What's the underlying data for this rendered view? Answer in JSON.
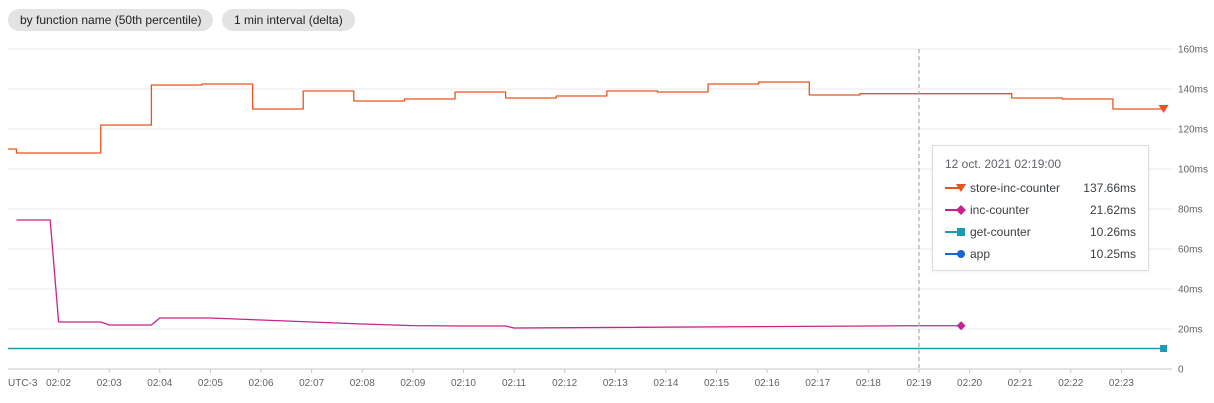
{
  "chips": {
    "aggregation": "by function name (50th percentile)",
    "interval": "1 min interval (delta)"
  },
  "colors": {
    "store-inc-counter": "#e8541e",
    "inc-counter": "#c9218e",
    "get-counter": "#1a9bb0",
    "app": "#1967d2",
    "grid": "#e8eaed",
    "crosshair": "#b0b0b0"
  },
  "tooltip": {
    "time": "12 oct. 2021 02:19:00",
    "rows": [
      {
        "name": "store-inc-counter",
        "value": "137.66ms",
        "marker": "triangle-down-icon"
      },
      {
        "name": "inc-counter",
        "value": "21.62ms",
        "marker": "diamond-icon"
      },
      {
        "name": "get-counter",
        "value": "10.26ms",
        "marker": "square-icon"
      },
      {
        "name": "app",
        "value": "10.25ms",
        "marker": "circle-icon"
      }
    ]
  },
  "chart_data": {
    "type": "line",
    "timezone_label": "UTC-3",
    "x_tick_labels": [
      "02:02",
      "02:03",
      "02:04",
      "02:05",
      "02:06",
      "02:07",
      "02:08",
      "02:09",
      "02:10",
      "02:11",
      "02:12",
      "02:13",
      "02:14",
      "02:15",
      "02:16",
      "02:17",
      "02:18",
      "02:19",
      "02:20",
      "02:21",
      "02:22",
      "02:23"
    ],
    "x_range": [
      "02:01",
      "02:24"
    ],
    "y_tick_labels": [
      "0",
      "20ms",
      "40ms",
      "60ms",
      "80ms",
      "100ms",
      "120ms",
      "140ms",
      "160ms"
    ],
    "ylim": [
      0,
      160
    ],
    "y_unit": "ms",
    "grid": true,
    "crosshair_time": "02:19",
    "series": [
      {
        "name": "store-inc-counter",
        "step": true,
        "points": [
          [
            "02:01",
            110
          ],
          [
            "02:01:10",
            108
          ],
          [
            "02:02",
            108
          ],
          [
            "02:02:50",
            122
          ],
          [
            "02:03:50",
            142
          ],
          [
            "02:04:50",
            142.5
          ],
          [
            "02:05:50",
            130
          ],
          [
            "02:06:50",
            139
          ],
          [
            "02:07:50",
            134
          ],
          [
            "02:08:50",
            135
          ],
          [
            "02:09:50",
            138.5
          ],
          [
            "02:10:50",
            135.5
          ],
          [
            "02:11:50",
            136.5
          ],
          [
            "02:12:50",
            139
          ],
          [
            "02:13:50",
            138.5
          ],
          [
            "02:14:50",
            142.5
          ],
          [
            "02:15:50",
            143.5
          ],
          [
            "02:16:50",
            137
          ],
          [
            "02:17:50",
            137.66
          ],
          [
            "02:18:50",
            137.66
          ],
          [
            "02:19:50",
            137.66
          ],
          [
            "02:20:50",
            135.5
          ],
          [
            "02:21:50",
            135
          ],
          [
            "02:22:50",
            130
          ],
          [
            "02:23:50",
            130
          ]
        ]
      },
      {
        "name": "inc-counter",
        "step": false,
        "points": [
          [
            "02:01:10",
            74.5
          ],
          [
            "02:01:50",
            74.5
          ],
          [
            "02:02",
            23.5
          ],
          [
            "02:02:50",
            23.5
          ],
          [
            "02:03",
            22
          ],
          [
            "02:03:50",
            22
          ],
          [
            "02:04",
            25.5
          ],
          [
            "02:05",
            25.5
          ],
          [
            "02:06",
            24.5
          ],
          [
            "02:07",
            23.5
          ],
          [
            "02:08",
            22.5
          ],
          [
            "02:09",
            21.7
          ],
          [
            "02:10",
            21.5
          ],
          [
            "02:10:50",
            21.5
          ],
          [
            "02:11",
            20.5
          ],
          [
            "02:18:50",
            21.62
          ],
          [
            "02:19:10",
            21.62
          ],
          [
            "02:19:50",
            21.62
          ]
        ]
      },
      {
        "name": "get-counter",
        "step": false,
        "points": [
          [
            "02:01",
            10.26
          ],
          [
            "02:23:50",
            10.26
          ]
        ]
      },
      {
        "name": "app",
        "step": false,
        "points": [
          [
            "02:01",
            10.25
          ],
          [
            "02:23:50",
            10.25
          ]
        ]
      }
    ]
  }
}
